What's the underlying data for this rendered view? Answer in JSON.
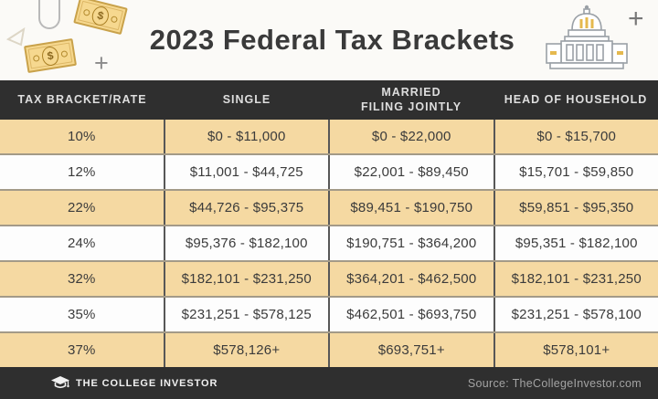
{
  "header": {
    "title": "2023 Federal Tax Brackets"
  },
  "table": {
    "columns": [
      {
        "label": "TAX BRACKET/RATE",
        "label2": ""
      },
      {
        "label": "SINGLE",
        "label2": ""
      },
      {
        "label": "MARRIED",
        "label2": "FILING JOINTLY"
      },
      {
        "label": "HEAD OF HOUSEHOLD",
        "label2": ""
      }
    ],
    "rows": [
      [
        "10%",
        "$0 - $11,000",
        "$0 - $22,000",
        "$0 - $15,700"
      ],
      [
        "12%",
        "$11,001 - $44,725",
        "$22,001 - $89,450",
        "$15,701 - $59,850"
      ],
      [
        "22%",
        "$44,726 - $95,375",
        "$89,451 - $190,750",
        "$59,851 - $95,350"
      ],
      [
        "24%",
        "$95,376 - $182,100",
        "$190,751 - $364,200",
        "$95,351 - $182,100"
      ],
      [
        "32%",
        "$182,101 - $231,250",
        "$364,201 - $462,500",
        "$182,101 - $231,250"
      ],
      [
        "35%",
        "$231,251 - $578,125",
        "$462,501 - $693,750",
        "$231,251 - $578,100"
      ],
      [
        "37%",
        "$578,126+",
        "$693,751+",
        "$578,101+"
      ]
    ]
  },
  "footer": {
    "brand": "THE COLLEGE INVESTOR",
    "source": "Source: TheCollegeInvestor.com"
  },
  "decorations": {
    "icons": [
      "paperclip-icon",
      "dollar-bill-icon",
      "dollar-bill-icon",
      "triangle-icon",
      "plus-icon",
      "plus-icon",
      "capitol-building-icon",
      "graduation-cap-icon"
    ],
    "plus_glyph": "+",
    "bill_dollar_sign": "$"
  },
  "colors": {
    "dark_bar": "#2f2f2f",
    "tan_row": "#f5d9a2",
    "white_row": "#fdfdfd",
    "header_text": "#dedede",
    "body_text": "#3b3b3b",
    "title_text": "#3a3a3a",
    "source_text": "#a3a3a3",
    "bill_fill": "#f6d88f",
    "bill_border": "#c9a24b",
    "dome_gold": "#e5b94e"
  },
  "chart_data": {
    "type": "table",
    "title": "2023 Federal Tax Brackets",
    "columns": [
      "TAX BRACKET/RATE",
      "SINGLE",
      "MARRIED FILING JOINTLY",
      "HEAD OF HOUSEHOLD"
    ],
    "rows": [
      [
        "10%",
        "$0 - $11,000",
        "$0 - $22,000",
        "$0 - $15,700"
      ],
      [
        "12%",
        "$11,001 - $44,725",
        "$22,001 - $89,450",
        "$15,701 - $59,850"
      ],
      [
        "22%",
        "$44,726 - $95,375",
        "$89,451 - $190,750",
        "$59,851 - $95,350"
      ],
      [
        "24%",
        "$95,376 - $182,100",
        "$190,751 - $364,200",
        "$95,351 - $182,100"
      ],
      [
        "32%",
        "$182,101 - $231,250",
        "$364,201 - $462,500",
        "$182,101 - $231,250"
      ],
      [
        "35%",
        "$231,251 - $578,125",
        "$462,501 - $693,750",
        "$231,251 - $578,100"
      ],
      [
        "37%",
        "$578,126+",
        "$693,751+",
        "$578,101+"
      ]
    ],
    "source": "Source: TheCollegeInvestor.com"
  }
}
